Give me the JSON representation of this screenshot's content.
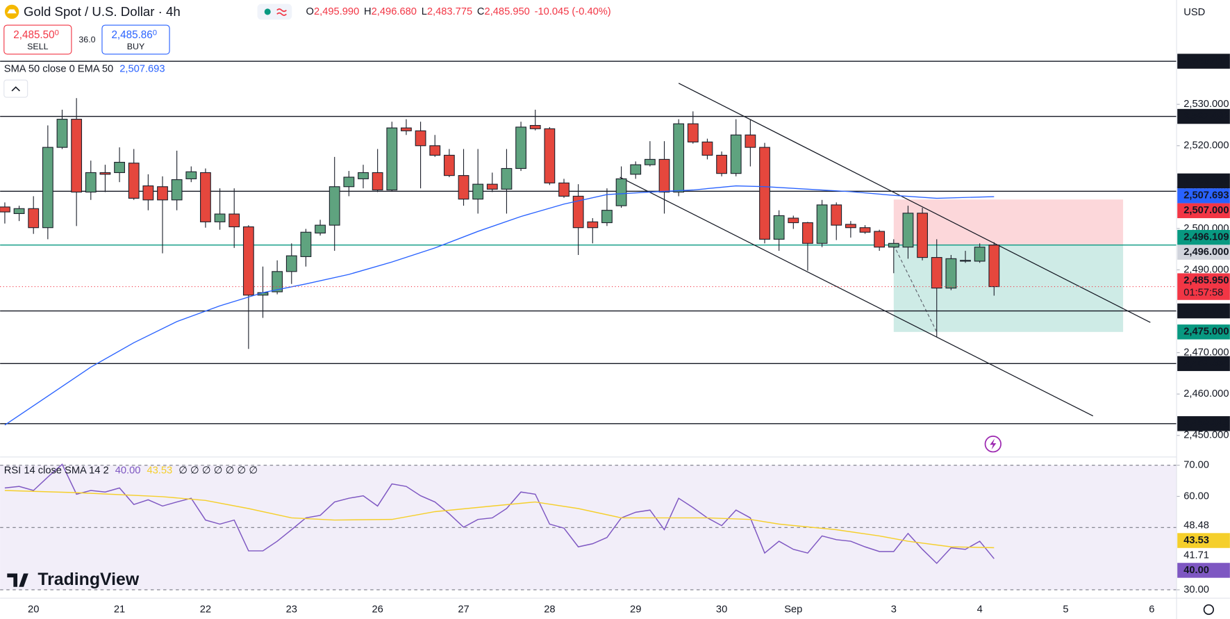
{
  "header": {
    "symbol": "Gold Spot / U.S. Dollar · 4h",
    "ohlc": [
      "O",
      "2,495.990",
      "H",
      "2,496.680",
      "L",
      "2,483.775",
      "C",
      "2,485.950"
    ],
    "change": "-10.045 (-0.40%)",
    "sell": {
      "price": "2,485.50",
      "price_small": "0",
      "label": "SELL"
    },
    "spread": "36.0",
    "buy": {
      "price": "2,485.86",
      "price_small": "0",
      "label": "BUY"
    },
    "currency": "USD",
    "branding": "TradingView"
  },
  "chart_data": [
    {
      "type": "candlestick",
      "categories": [
        null,
        null,
        "20",
        null,
        null,
        null,
        null,
        null,
        "21",
        null,
        null,
        null,
        null,
        null,
        "22",
        null,
        null,
        null,
        null,
        null,
        "23",
        null,
        null,
        null,
        null,
        null,
        "26",
        null,
        null,
        null,
        null,
        null,
        "27",
        null,
        null,
        null,
        null,
        null,
        "28",
        null,
        null,
        null,
        null,
        null,
        "29",
        null,
        null,
        null,
        null,
        null,
        "30",
        null,
        null,
        null,
        null,
        "Sep",
        null,
        null,
        null,
        null,
        null,
        null,
        "3",
        null,
        null,
        null,
        null,
        null,
        "4",
        null,
        null,
        null,
        null,
        null,
        "5",
        null,
        null,
        null,
        null,
        null,
        "6"
      ],
      "open": [
        2505.2,
        2503.6,
        2504.8,
        2500.2,
        2519.6,
        2526.4,
        2508.8,
        2513.5,
        2513.5,
        2515.8,
        2510.3,
        2510.1,
        2506.9,
        2512.0,
        2513.5,
        2501.6,
        2503.5,
        2500.4,
        2483.9,
        2484.7,
        2489.6,
        2493.2,
        2498.9,
        2500.8,
        2510.1,
        2512.0,
        2513.5,
        2509.3,
        2524.3,
        2523.6,
        2520.0,
        2517.7,
        2512.8,
        2507.1,
        2510.7,
        2509.5,
        2514.5,
        2524.9,
        2524.1,
        2511.0,
        2507.8,
        2501.6,
        2501.4,
        2505.5,
        2513.1,
        2515.4,
        2516.7,
        2508.8,
        2525.3,
        2520.9,
        2517.7,
        2513.3,
        2522.6,
        2519.6,
        2497.4,
        2502.5,
        2501.4,
        2496.4,
        2505.7,
        2501.0,
        2500.2,
        2499.3,
        2495.5,
        2495.5,
        2503.7,
        2493.0,
        2485.6,
        2492.1,
        2492.1,
        2495.99,
        null,
        null,
        null,
        null,
        null,
        null,
        null,
        null,
        null,
        null,
        null
      ],
      "high": [
        2506.3,
        2505.5,
        2507.8,
        2524.9,
        2528.7,
        2531.5,
        2516.4,
        2515.4,
        2519.6,
        2519.2,
        2513.1,
        2512.6,
        2518.8,
        2515.0,
        2514.5,
        2509.7,
        2509.7,
        2500.8,
        2490.8,
        2492.3,
        2496.4,
        2499.9,
        2502.1,
        2517.3,
        2513.9,
        2515.4,
        2519.2,
        2525.8,
        2526.4,
        2525.8,
        2522.6,
        2519.2,
        2519.2,
        2519.2,
        2513.5,
        2519.2,
        2525.8,
        2528.7,
        2524.5,
        2512.0,
        2510.7,
        2502.5,
        2509.7,
        2515.0,
        2516.2,
        2521.1,
        2521.1,
        2526.4,
        2528.3,
        2521.7,
        2518.6,
        2526.4,
        2526.4,
        2520.7,
        2504.4,
        2503.1,
        2501.6,
        2506.9,
        2506.3,
        2501.8,
        2500.8,
        2499.7,
        2497.4,
        2505.5,
        2505.0,
        2497.4,
        2493.6,
        2494.6,
        2496.4,
        2496.68,
        null,
        null,
        null,
        null,
        null,
        null,
        null,
        null,
        null,
        null,
        null
      ],
      "low": [
        2501.2,
        2501.8,
        2498.7,
        2497.4,
        2519.2,
        2500.6,
        2506.9,
        2508.8,
        2511.2,
        2506.9,
        2504.4,
        2494.0,
        2504.4,
        2511.2,
        2500.2,
        2499.7,
        2495.3,
        2470.9,
        2478.4,
        2484.1,
        2486.6,
        2490.8,
        2498.3,
        2494.6,
        2507.8,
        2509.7,
        2508.8,
        2509.0,
        2522.6,
        2509.7,
        2517.3,
        2512.4,
        2505.5,
        2503.6,
        2508.8,
        2503.6,
        2513.9,
        2523.7,
        2510.5,
        2507.4,
        2493.6,
        2496.4,
        2500.6,
        2505.0,
        2512.0,
        2515.0,
        2503.6,
        2507.8,
        2520.5,
        2516.7,
        2512.6,
        2512.6,
        2515.0,
        2496.4,
        2494.6,
        2499.9,
        2489.8,
        2495.5,
        2497.2,
        2497.8,
        2498.7,
        2494.6,
        2489.2,
        2492.7,
        2492.3,
        2473.7,
        2485.1,
        2491.7,
        2491.7,
        2483.775,
        null,
        null,
        null,
        null,
        null,
        null,
        null,
        null,
        null,
        null,
        null
      ],
      "close": [
        2504.0,
        2504.8,
        2500.2,
        2519.6,
        2526.4,
        2508.8,
        2513.5,
        2513.1,
        2516.0,
        2507.3,
        2506.9,
        2506.9,
        2511.8,
        2513.7,
        2501.6,
        2503.5,
        2500.4,
        2483.9,
        2484.5,
        2489.6,
        2493.4,
        2499.1,
        2500.8,
        2510.1,
        2512.4,
        2513.5,
        2509.3,
        2524.3,
        2523.6,
        2520.0,
        2517.7,
        2512.8,
        2507.1,
        2510.7,
        2509.5,
        2514.5,
        2524.5,
        2524.1,
        2511.0,
        2507.8,
        2500.2,
        2500.2,
        2504.4,
        2512.0,
        2515.4,
        2516.7,
        2508.8,
        2525.3,
        2520.9,
        2517.7,
        2513.3,
        2522.6,
        2519.6,
        2497.4,
        2503.1,
        2501.4,
        2496.4,
        2505.7,
        2500.8,
        2500.2,
        2499.1,
        2495.5,
        2496.4,
        2503.7,
        2493.0,
        2485.6,
        2492.7,
        2492.3,
        2495.5,
        2485.95,
        null,
        null,
        null,
        null,
        null,
        null,
        null,
        null,
        null,
        null,
        null
      ],
      "up_color": "#5fa37f",
      "down_color": "#e5473d",
      "ylim": [
        2444.88,
        2555.21
      ],
      "yticks": [
        {
          "value": 2450,
          "label": "2,450.000"
        },
        {
          "value": 2460,
          "label": "2,460.000"
        },
        {
          "value": 2470,
          "label": "2,470.000"
        },
        {
          "value": 2480,
          "label": "2,480.000"
        },
        {
          "value": 2490,
          "label": "2,490.000"
        },
        {
          "value": 2500,
          "label": "2,500.000"
        },
        {
          "value": 2510,
          "label": "2,510.000"
        },
        {
          "value": 2520,
          "label": "2,520.000"
        },
        {
          "value": 2530,
          "label": "2,530.000"
        }
      ],
      "ema": {
        "name": "SMA 50 close 0 EMA 50",
        "color": "#2962ff",
        "value_label": "2,507.693",
        "x": [
          0,
          3,
          6,
          9,
          12,
          15,
          18,
          21,
          24,
          27,
          30,
          33,
          36,
          39,
          42,
          45,
          48,
          51,
          53,
          56,
          59,
          62,
          65,
          69
        ],
        "values": [
          2452.5,
          2459.5,
          2466.5,
          2472.4,
          2477.5,
          2481.3,
          2484.5,
          2486.6,
          2488.9,
          2491.9,
          2495.3,
          2499.3,
          2502.9,
          2505.9,
          2508.2,
          2508.8,
          2509.3,
          2510.3,
          2510.1,
          2509.5,
          2508.9,
          2508.0,
          2507.3,
          2507.693
        ]
      },
      "hlines": [
        {
          "value": 2540.414,
          "label": "2,540.414",
          "color": "#131722"
        },
        {
          "value": 2527.082,
          "label": "2,527.082",
          "color": "#131722"
        },
        {
          "value": 2508.995,
          "label": "2,508.995",
          "color": "#131722"
        },
        {
          "value": 2496,
          "label": "2,496.000",
          "color": "#089981",
          "label_color": "#d1d4dc"
        },
        {
          "value": 2480.081,
          "label": "2,480.081",
          "color": "#131722"
        },
        {
          "value": 2467.354,
          "label": "2,467.354",
          "color": "#131722"
        },
        {
          "value": 2452.843,
          "label": "2,452.843",
          "color": "#131722"
        }
      ],
      "price_labels": [
        {
          "value": 2496.109,
          "label": "2,496.109",
          "color": "#089981"
        }
      ],
      "last_label": "2,485.950",
      "countdown": "01:57:58",
      "last_color": "#f23645",
      "position": {
        "x": [
          62,
          78
        ],
        "entry": 2496,
        "stop": 2507,
        "stop_label": "2,507.000",
        "target": 2475,
        "target_label": "2,475.000"
      },
      "trendlines": [
        {
          "x": [
            47,
            79.9
          ],
          "y": [
            2535.1,
            2477.3
          ]
        },
        {
          "x": [
            42.9,
            75.9
          ],
          "y": [
            2512.4,
            2454.7
          ]
        }
      ]
    },
    {
      "type": "line",
      "title": "RSI 14 close SMA 14 2",
      "legend_extra": "∅ ∅ ∅ ∅ ∅ ∅ ∅",
      "ylim": [
        27.43,
        72.52
      ],
      "yticks": [
        {
          "value": 30,
          "label": "30.00"
        },
        {
          "value": 60,
          "label": "60.00"
        },
        {
          "value": 70,
          "label": "70.00"
        }
      ],
      "band": [
        30,
        70
      ],
      "levels": [
        70,
        50,
        30
      ],
      "series": [
        {
          "color": "#7e57c2",
          "value_label": "40.00",
          "values": [
            62.7,
            63.2,
            61.9,
            66.2,
            70.3,
            60.7,
            61.9,
            61.4,
            62.7,
            57.4,
            58.9,
            56.9,
            58.2,
            59.4,
            52.4,
            51.1,
            52.4,
            42.5,
            42.5,
            45.6,
            49.3,
            53.1,
            53.9,
            58.2,
            59.4,
            60.2,
            56.9,
            64.0,
            63.2,
            60.2,
            58.2,
            54.4,
            50.1,
            52.6,
            53.1,
            56.1,
            61.4,
            60.7,
            51.1,
            49.8,
            43.8,
            44.8,
            46.8,
            53.1,
            54.9,
            55.6,
            49.3,
            59.4,
            56.4,
            53.1,
            50.6,
            55.6,
            53.1,
            41.8,
            45.6,
            43.0,
            41.8,
            47.3,
            46.1,
            45.6,
            43.8,
            42.3,
            42.3,
            48.1,
            43.0,
            38.5,
            43.5,
            43.0,
            45.6,
            40.0
          ]
        },
        {
          "color": "#f5cf2b",
          "value_label": "43.53",
          "x": [
            0,
            5,
            11,
            14,
            17,
            20,
            23,
            27,
            30,
            34,
            37,
            40,
            43,
            46,
            49,
            52,
            54,
            58,
            61,
            63,
            66,
            69
          ],
          "values": [
            61.9,
            61.2,
            59.9,
            58.7,
            56.1,
            53.1,
            52.4,
            52.6,
            55.1,
            56.9,
            58.2,
            56.1,
            53.1,
            53.1,
            53.1,
            52.6,
            51.1,
            49.3,
            47.3,
            45.6,
            43.8,
            43.53
          ]
        }
      ],
      "axis_labels": [
        {
          "value": 48.48,
          "label": "48.48"
        },
        {
          "value": 41.71,
          "label": "41.71"
        }
      ]
    }
  ]
}
